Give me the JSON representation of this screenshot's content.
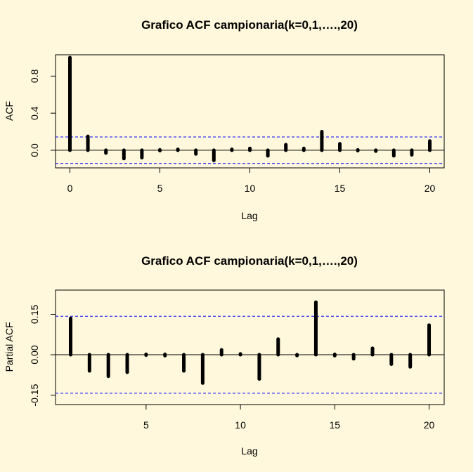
{
  "colors": {
    "background": "#FFF8DC",
    "bars": "#000000",
    "ci_line": "#0000FF",
    "axis": "#000000"
  },
  "chart_data": [
    {
      "type": "bar",
      "title": "Grafico ACF campionaria(k=0,1,….,20)",
      "xlabel": "Lag",
      "ylabel": "ACF",
      "xlim": [
        -0.8,
        20.8
      ],
      "ylim": [
        -0.19,
        1.03
      ],
      "xticks": [
        "0",
        "5",
        "10",
        "15",
        "20"
      ],
      "yticks": [
        "0.0",
        "0.4",
        "0.8"
      ],
      "zero_line": 0,
      "confidence_band": [
        -0.143,
        0.143
      ],
      "x": [
        0,
        1,
        2,
        3,
        4,
        5,
        6,
        7,
        8,
        9,
        10,
        11,
        12,
        13,
        14,
        15,
        16,
        17,
        18,
        19,
        20
      ],
      "values": [
        1.0,
        0.15,
        -0.03,
        -0.09,
        -0.08,
        0.0,
        0.01,
        -0.04,
        -0.11,
        0.01,
        0.02,
        -0.06,
        0.06,
        0.02,
        0.2,
        0.07,
        0.0,
        -0.01,
        -0.06,
        -0.05,
        0.1
      ]
    },
    {
      "type": "bar",
      "title": "Grafico ACF campionaria(k=0,1,….,20)",
      "xlabel": "Lag",
      "ylabel": "Partial ACF",
      "xlim": [
        0.2,
        20.8
      ],
      "ylim": [
        -0.185,
        0.24
      ],
      "xticks": [
        "5",
        "10",
        "15",
        "20"
      ],
      "yticks": [
        "-0.15",
        "0.00",
        "0.15"
      ],
      "zero_line": 0,
      "confidence_band": [
        -0.143,
        0.143
      ],
      "x": [
        1,
        2,
        3,
        4,
        5,
        6,
        7,
        8,
        9,
        10,
        11,
        12,
        13,
        14,
        15,
        16,
        17,
        18,
        19,
        20
      ],
      "values": [
        0.135,
        -0.06,
        -0.08,
        -0.065,
        0.0,
        -0.002,
        -0.06,
        -0.105,
        0.018,
        0.003,
        -0.09,
        0.058,
        -0.003,
        0.195,
        -0.002,
        -0.015,
        0.024,
        -0.035,
        -0.045,
        0.11
      ]
    }
  ]
}
